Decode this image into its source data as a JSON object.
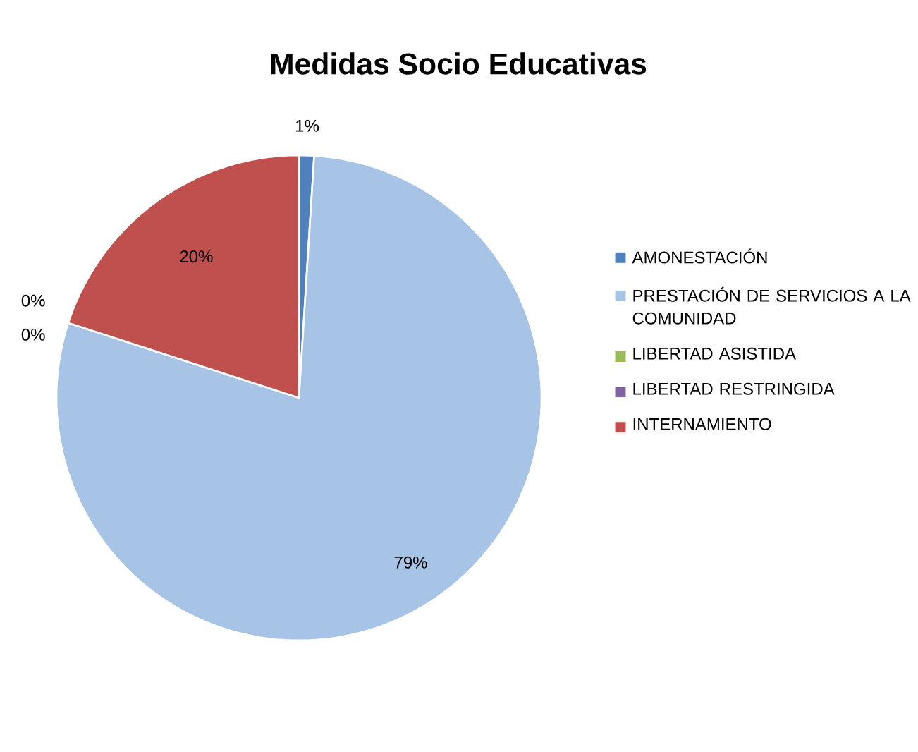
{
  "chart_data": {
    "type": "pie",
    "title": "Medidas Socio Educativas",
    "categories": [
      "AMONESTACIÓN",
      "PRESTACIÓN DE SERVICIOS A LA COMUNIDAD",
      "LIBERTAD ASISTIDA",
      "LIBERTAD RESTRINGIDA",
      "INTERNAMIENTO"
    ],
    "values": [
      1,
      79,
      0,
      0,
      20
    ],
    "colors": [
      "#4f81bd",
      "#a7c3e6",
      "#9bbb59",
      "#8064a2",
      "#c0504d"
    ],
    "value_labels": [
      "1%",
      "79%",
      "0%",
      "0%",
      "20%"
    ],
    "legend": "right"
  }
}
